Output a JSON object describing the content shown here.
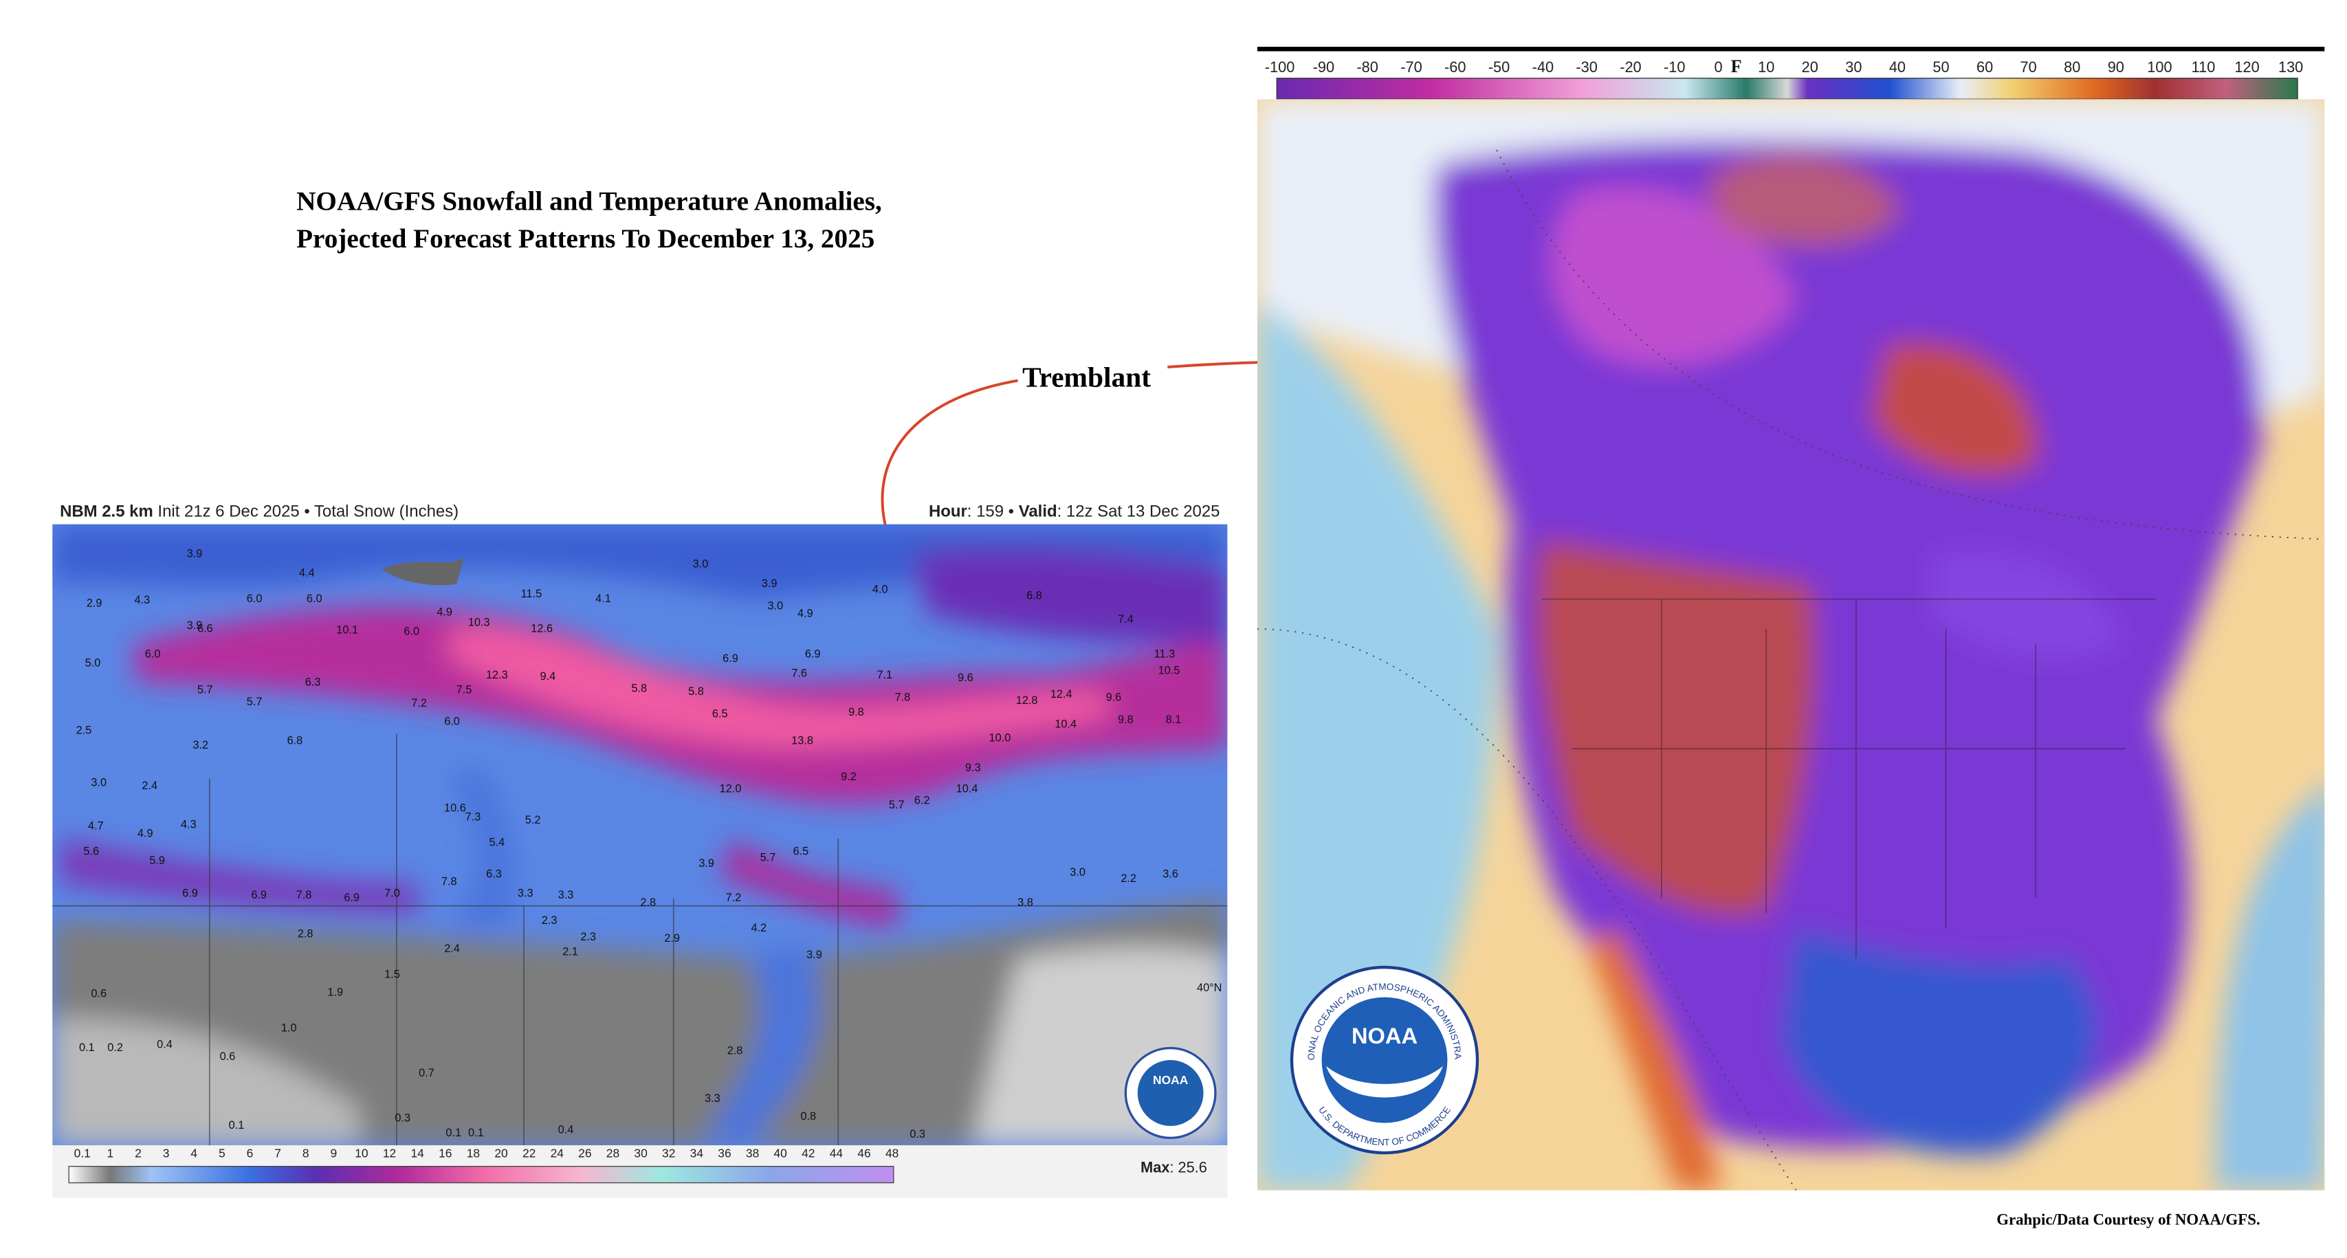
{
  "title": {
    "line1": "NOAA/GFS Snowfall and Temperature Anomalies,",
    "line2": "Projected Forecast Patterns To December 13, 2025"
  },
  "annotation": "Tremblant",
  "snow_map": {
    "header_left": [
      "NBM 2.5 km",
      " Init 21z 6 Dec 2025 • Total Snow (Inches)"
    ],
    "header_right": [
      "Hour",
      ": 159 • ",
      "Valid",
      ": 12z Sat 13 Dec 2025"
    ],
    "labels": [
      "3.9",
      "4.4",
      "6.0",
      "2.9",
      "4.3",
      "3.9",
      "6.6",
      "6.0",
      "6.0",
      "10.1",
      "6.0",
      "10.3",
      "4.9",
      "11.5",
      "12.6",
      "4.1",
      "3.0",
      "3.9",
      "3.0",
      "4.9",
      "4.0",
      "6.8",
      "7.4",
      "6.9",
      "6.9",
      "7.6",
      "7.1",
      "7.8",
      "9.6",
      "12.8",
      "12.4",
      "9.6",
      "11.3",
      "10.5",
      "12.3",
      "9.4",
      "5.8",
      "5.8",
      "6.5",
      "9.8",
      "13.8",
      "10.0",
      "8.1",
      "9.8",
      "10.4",
      "5.0",
      "5.7",
      "5.7",
      "6.3",
      "7.5",
      "7.2",
      "6.0",
      "6.8",
      "3.2",
      "2.5",
      "3.0",
      "2.4",
      "12.0",
      "9.2",
      "9.3",
      "10.4",
      "5.7",
      "6.2",
      "10.6",
      "7.3",
      "5.4",
      "5.2",
      "4.7",
      "4.9",
      "4.3",
      "5.6",
      "5.9",
      "7.8",
      "6.3",
      "3.9",
      "5.7",
      "6.5",
      "3.0",
      "2.2",
      "3.6",
      "6.9",
      "6.9",
      "7.8",
      "6.9",
      "7.0",
      "3.3",
      "3.3",
      "2.3",
      "2.3",
      "2.8",
      "7.2",
      "4.2",
      "3.8",
      "2.8",
      "2.4",
      "2.1",
      "2.9",
      "3.9",
      "1.5",
      "1.9",
      "1.0",
      "0.1",
      "0.2",
      "0.4",
      "0.6",
      "0.6",
      "0.7",
      "0.3",
      "0.1",
      "0.1",
      "0.1",
      "0.4",
      "2.8",
      "3.3",
      "0.8",
      "0.3",
      "40°N"
    ],
    "legend": [
      "0.1",
      "1",
      "2",
      "3",
      "4",
      "5",
      "6",
      "7",
      "8",
      "9",
      "10",
      "12",
      "14",
      "16",
      "18",
      "20",
      "22",
      "24",
      "26",
      "28",
      "30",
      "32",
      "34",
      "36",
      "38",
      "40",
      "42",
      "44",
      "46",
      "48"
    ],
    "max": [
      "Max",
      ": 25.6"
    ],
    "logo": "NOAA"
  },
  "temp_map": {
    "scale_negative": [
      -100,
      -90,
      -80,
      -70,
      -60,
      -50,
      -40,
      -30,
      -20,
      -10,
      0
    ],
    "unit": "F",
    "scale_positive": [
      10,
      20,
      30,
      40,
      50,
      60,
      70,
      80,
      90,
      100,
      110,
      120,
      130
    ],
    "logo": {
      "text": "NOAA",
      "ring_top": "NATIONAL OCEANIC AND ATMOSPHERIC ADMINISTRATION",
      "ring_bottom": "U.S. DEPARTMENT OF COMMERCE"
    }
  },
  "credit": "Grahpic/Data Courtesy of NOAA/GFS."
}
